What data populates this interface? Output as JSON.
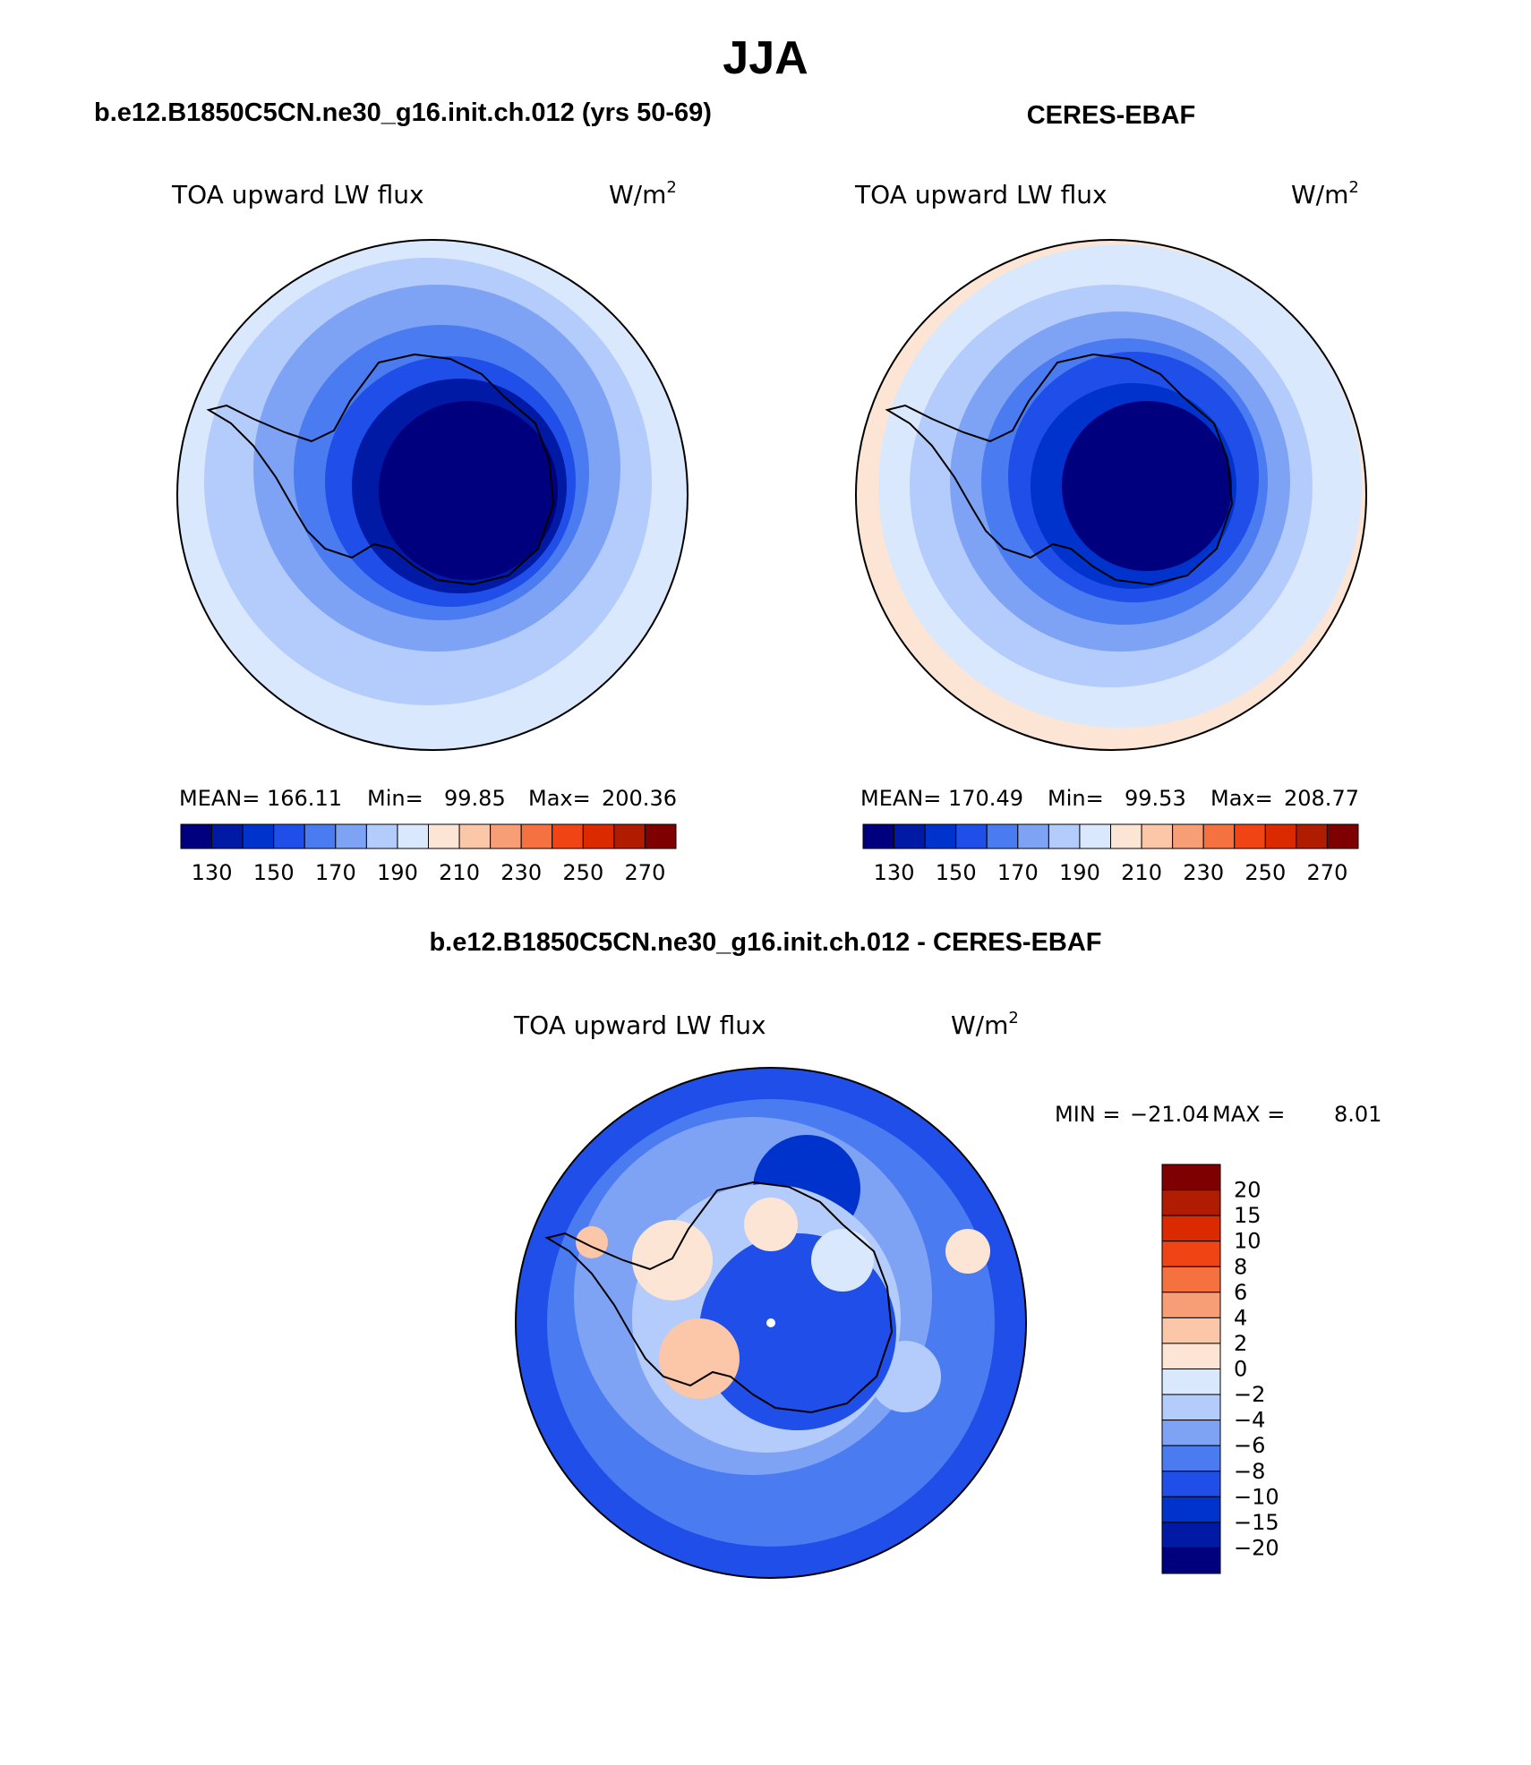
{
  "title": "JJA",
  "palette": {
    "abs": [
      "#00007f",
      "#001aa6",
      "#0033cc",
      "#1f4fe8",
      "#4a7bf0",
      "#7ea3f5",
      "#b4ccfb",
      "#d9e8fc",
      "#fde5d5",
      "#fcc6a9",
      "#f89e76",
      "#f5713f",
      "#f04414",
      "#dc2a00",
      "#b01c00",
      "#7f0000"
    ],
    "diff": [
      "#00007f",
      "#001aa6",
      "#0033cc",
      "#1f4fe8",
      "#4a7bf0",
      "#7ea3f5",
      "#b4ccfb",
      "#d9e8fc",
      "#fde5d5",
      "#fcc6a9",
      "#f89e76",
      "#f5713f",
      "#f04414",
      "#dc2a00",
      "#b01c00",
      "#7f0000"
    ]
  },
  "chart_data": [
    {
      "type": "heatmap",
      "projection": "south-polar-stereographic",
      "case_title": "b.e12.B1850C5CN.ne30_g16.init.ch.012 (yrs 50-69)",
      "variable": "TOA upward LW flux",
      "units": "W/m",
      "units_sup": "2",
      "stats": {
        "mean_label": "MEAN=",
        "mean": "166.11",
        "min_label": "Min=",
        "min": "99.85",
        "max_label": "Max=",
        "max": "200.36"
      },
      "levels": [
        120,
        130,
        140,
        150,
        160,
        170,
        180,
        190,
        200,
        210,
        220,
        230,
        240,
        250,
        260,
        270
      ],
      "ticks": [
        "130",
        "150",
        "170",
        "190",
        "210",
        "230",
        "250",
        "270"
      ],
      "zones": [
        {
          "level": 200,
          "value": 195
        },
        {
          "level": 190,
          "value": 185
        },
        {
          "level": 180,
          "value": 175
        },
        {
          "level": 170,
          "value": 165
        },
        {
          "level": 160,
          "value": 155
        },
        {
          "level": 140,
          "value": 135
        },
        {
          "level": 120,
          "value": 110
        }
      ]
    },
    {
      "type": "heatmap",
      "projection": "south-polar-stereographic",
      "case_title": "CERES-EBAF",
      "variable": "TOA upward LW flux",
      "units": "W/m",
      "units_sup": "2",
      "stats": {
        "mean_label": "MEAN=",
        "mean": "170.49",
        "min_label": "Min=",
        "min": "99.53",
        "max_label": "Max=",
        "max": "208.77"
      },
      "levels": [
        120,
        130,
        140,
        150,
        160,
        170,
        180,
        190,
        200,
        210,
        220,
        230,
        240,
        250,
        260,
        270
      ],
      "ticks": [
        "130",
        "150",
        "170",
        "190",
        "210",
        "230",
        "250",
        "270"
      ],
      "zones": [
        {
          "level": 200,
          "value": 205
        },
        {
          "level": 190,
          "value": 195
        },
        {
          "level": 180,
          "value": 185
        },
        {
          "level": 170,
          "value": 175
        },
        {
          "level": 160,
          "value": 165
        },
        {
          "level": 150,
          "value": 155
        },
        {
          "level": 140,
          "value": 140
        },
        {
          "level": 120,
          "value": 115
        }
      ]
    },
    {
      "type": "heatmap",
      "projection": "south-polar-stereographic",
      "case_title": "b.e12.B1850C5CN.ne30_g16.init.ch.012 - CERES-EBAF",
      "variable": "TOA upward LW flux",
      "units": "W/m",
      "units_sup": "2",
      "stats": {
        "min_label": "MIN =",
        "min": "−21.04",
        "max_label": "MAX =",
        "max": "8.01"
      },
      "levels": [
        -25,
        -20,
        -15,
        -10,
        -8,
        -6,
        -4,
        -2,
        0,
        2,
        4,
        6,
        8,
        10,
        15,
        20
      ],
      "ticks": [
        "20",
        "15",
        "10",
        "8",
        "6",
        "4",
        "2",
        "0",
        "−2",
        "−4",
        "−6",
        "−8",
        "−10",
        "−15",
        "−20"
      ]
    }
  ]
}
